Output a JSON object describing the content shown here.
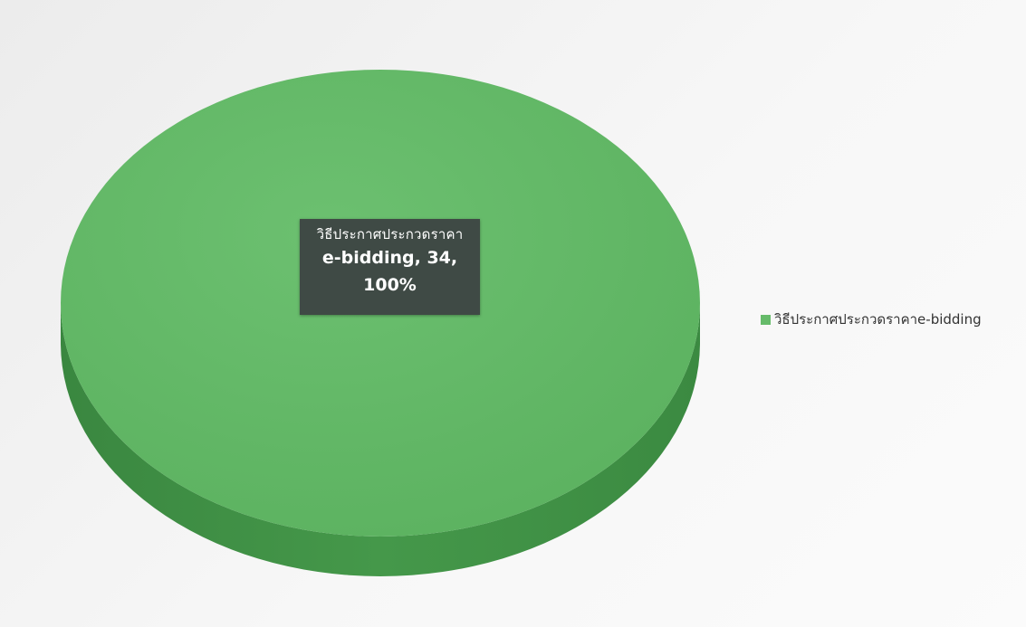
{
  "chart_data": {
    "type": "pie",
    "style": "3d",
    "categories": [
      "วิธีประกาศประกวดราคาe-bidding"
    ],
    "values": [
      34
    ],
    "percentages": [
      "100%"
    ],
    "data_labels": [
      {
        "category_line": "วิธีประกาศประกวดราคา",
        "value_line": "e-bidding, 34,",
        "percent_line": "100%"
      }
    ],
    "legend": {
      "position": "right",
      "entries": [
        "วิธีประกาศประกวดราคาe-bidding"
      ]
    },
    "colors": {
      "slice_top": "#66bb6a",
      "slice_side": "#3f8f44",
      "label_bg": "#3f4a45"
    }
  }
}
